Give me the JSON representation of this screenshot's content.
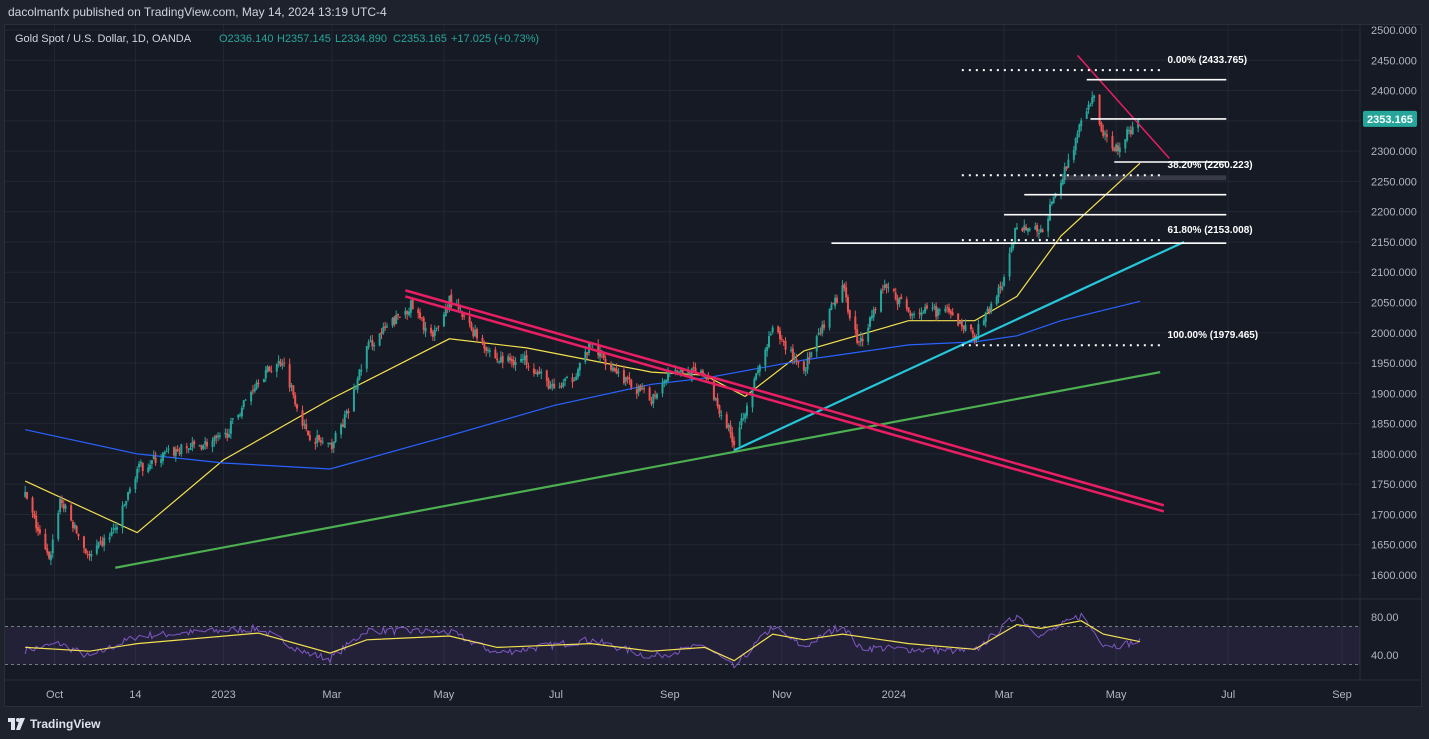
{
  "header": {
    "published": "dacolmanfx published on TradingView.com, May 14, 2024 13:19 UTC-4"
  },
  "legend": {
    "symbol": "Gold Spot / U.S. Dollar, 1D, OANDA",
    "open": "O2336.140",
    "high": "H2357.145",
    "low": "L2334.890",
    "close": "C2353.165",
    "change": "+17.025 (+0.73%)"
  },
  "price_tag": "2353.165",
  "footer": {
    "brand": "TradingView"
  },
  "colors": {
    "background": "#161a25",
    "up_candle": "#26a69a",
    "down_candle": "#ef5350",
    "sma_50": "#f5e050",
    "sma_200": "#2962ff",
    "downtrend_channel": "#e91e63",
    "long_support": "#4caf50",
    "short_support": "#26c6da",
    "rsi_line": "#7e57c2",
    "rsi_signal": "#f5e050",
    "price_tag": "#26a69a"
  },
  "icons": {
    "logo": "tradingview-logo-icon"
  },
  "chart_data": {
    "type": "candlestick",
    "title": "Gold Spot / U.S. Dollar, 1D, OANDA",
    "x_tick_labels": [
      "Oct",
      "14",
      "2023",
      "Mar",
      "May",
      "Jul",
      "Sep",
      "Nov",
      "2024",
      "Mar",
      "May",
      "Jul",
      "Sep"
    ],
    "y_tick_labels": [
      "1600.000",
      "1650.000",
      "1700.000",
      "1750.000",
      "1800.000",
      "1850.000",
      "1900.000",
      "1950.000",
      "2000.000",
      "2050.000",
      "2100.000",
      "2150.000",
      "2200.000",
      "2250.000",
      "2300.000",
      "2350.000",
      "2400.000",
      "2450.000",
      "2500.000"
    ],
    "ylim": [
      1600,
      2500
    ],
    "close_path": [
      [
        "2022-09-15",
        1732
      ],
      [
        "2022-09-28",
        1622
      ],
      [
        "2022-10-04",
        1725
      ],
      [
        "2022-10-20",
        1628
      ],
      [
        "2022-11-04",
        1680
      ],
      [
        "2022-11-15",
        1775
      ],
      [
        "2022-12-01",
        1800
      ],
      [
        "2022-12-13",
        1810
      ],
      [
        "2023-01-01",
        1825
      ],
      [
        "2023-01-20",
        1925
      ],
      [
        "2023-02-02",
        1955
      ],
      [
        "2023-02-15",
        1835
      ],
      [
        "2023-02-28",
        1810
      ],
      [
        "2023-03-10",
        1870
      ],
      [
        "2023-03-20",
        1975
      ],
      [
        "2023-04-04",
        2020
      ],
      [
        "2023-04-13",
        2045
      ],
      [
        "2023-04-25",
        1990
      ],
      [
        "2023-05-04",
        2055
      ],
      [
        "2023-05-15",
        2010
      ],
      [
        "2023-05-30",
        1955
      ],
      [
        "2023-06-15",
        1955
      ],
      [
        "2023-06-30",
        1905
      ],
      [
        "2023-07-10",
        1925
      ],
      [
        "2023-07-20",
        1980
      ],
      [
        "2023-08-10",
        1915
      ],
      [
        "2023-08-22",
        1890
      ],
      [
        "2023-09-01",
        1940
      ],
      [
        "2023-09-20",
        1930
      ],
      [
        "2023-10-06",
        1820
      ],
      [
        "2023-10-12",
        1875
      ],
      [
        "2023-10-27",
        2005
      ],
      [
        "2023-11-13",
        1940
      ],
      [
        "2023-11-29",
        2045
      ],
      [
        "2023-12-04",
        2075
      ],
      [
        "2023-12-13",
        1980
      ],
      [
        "2023-12-27",
        2080
      ],
      [
        "2024-01-09",
        2035
      ],
      [
        "2024-01-29",
        2035
      ],
      [
        "2024-02-14",
        1995
      ],
      [
        "2024-03-01",
        2085
      ],
      [
        "2024-03-08",
        2180
      ],
      [
        "2024-03-21",
        2165
      ],
      [
        "2024-04-01",
        2250
      ],
      [
        "2024-04-12",
        2345
      ],
      [
        "2024-04-19",
        2390
      ],
      [
        "2024-04-24",
        2325
      ],
      [
        "2024-05-01",
        2305
      ],
      [
        "2024-05-14",
        2353.165
      ]
    ],
    "series": [
      {
        "type": "moving-average",
        "points": [
          [
            "2022-09-15",
            1755
          ],
          [
            "2022-11-15",
            1670
          ],
          [
            "2023-01-01",
            1790
          ],
          [
            "2023-02-28",
            1890
          ],
          [
            "2023-05-04",
            1990
          ],
          [
            "2023-06-15",
            1975
          ],
          [
            "2023-08-22",
            1935
          ],
          [
            "2023-09-20",
            1930
          ],
          [
            "2023-10-12",
            1895
          ],
          [
            "2023-11-13",
            1970
          ],
          [
            "2024-01-09",
            2020
          ],
          [
            "2024-02-14",
            2020
          ],
          [
            "2024-03-08",
            2060
          ],
          [
            "2024-04-01",
            2160
          ],
          [
            "2024-05-14",
            2280
          ]
        ]
      },
      {
        "type": "moving-average",
        "points": [
          [
            "2022-09-15",
            1840
          ],
          [
            "2022-11-15",
            1800
          ],
          [
            "2023-01-01",
            1785
          ],
          [
            "2023-02-28",
            1775
          ],
          [
            "2023-05-04",
            1830
          ],
          [
            "2023-06-30",
            1880
          ],
          [
            "2023-08-22",
            1915
          ],
          [
            "2023-09-20",
            1925
          ],
          [
            "2023-11-13",
            1955
          ],
          [
            "2024-01-09",
            1980
          ],
          [
            "2024-02-14",
            1985
          ],
          [
            "2024-03-08",
            1995
          ],
          [
            "2024-04-01",
            2020
          ],
          [
            "2024-05-14",
            2052
          ]
        ]
      }
    ],
    "rsi": {
      "y_tick_labels": [
        "80.00",
        "40.00"
      ],
      "ylim": [
        30,
        90
      ],
      "upper_band": 70,
      "lower_band": 30,
      "line": [
        [
          "2022-09-15",
          45
        ],
        [
          "2022-10-04",
          52
        ],
        [
          "2022-10-20",
          38
        ],
        [
          "2022-11-15",
          60
        ],
        [
          "2023-01-20",
          68
        ],
        [
          "2023-02-15",
          42
        ],
        [
          "2023-02-28",
          36
        ],
        [
          "2023-03-20",
          66
        ],
        [
          "2023-05-04",
          64
        ],
        [
          "2023-05-30",
          42
        ],
        [
          "2023-07-20",
          56
        ],
        [
          "2023-08-22",
          38
        ],
        [
          "2023-09-20",
          50
        ],
        [
          "2023-10-06",
          27
        ],
        [
          "2023-10-27",
          70
        ],
        [
          "2023-11-13",
          48
        ],
        [
          "2023-12-04",
          72
        ],
        [
          "2023-12-13",
          48
        ],
        [
          "2024-01-09",
          46
        ],
        [
          "2024-02-14",
          44
        ],
        [
          "2024-03-08",
          82
        ],
        [
          "2024-03-21",
          60
        ],
        [
          "2024-04-12",
          82
        ],
        [
          "2024-04-24",
          52
        ],
        [
          "2024-05-01",
          50
        ],
        [
          "2024-05-14",
          54
        ]
      ],
      "signal": [
        [
          "2022-09-15",
          48
        ],
        [
          "2022-10-20",
          44
        ],
        [
          "2022-11-15",
          52
        ],
        [
          "2023-01-20",
          63
        ],
        [
          "2023-02-28",
          42
        ],
        [
          "2023-03-20",
          56
        ],
        [
          "2023-05-04",
          60
        ],
        [
          "2023-05-30",
          48
        ],
        [
          "2023-07-20",
          52
        ],
        [
          "2023-08-22",
          44
        ],
        [
          "2023-09-20",
          48
        ],
        [
          "2023-10-06",
          34
        ],
        [
          "2023-10-27",
          62
        ],
        [
          "2023-11-13",
          56
        ],
        [
          "2023-12-04",
          62
        ],
        [
          "2024-01-09",
          52
        ],
        [
          "2024-02-14",
          46
        ],
        [
          "2024-03-08",
          72
        ],
        [
          "2024-03-21",
          68
        ],
        [
          "2024-04-12",
          76
        ],
        [
          "2024-04-24",
          62
        ],
        [
          "2024-05-14",
          54
        ]
      ]
    },
    "annotations": {
      "fib_levels": [
        {
          "label": "0.00% (2433.765)",
          "value": 2433.765
        },
        {
          "label": "38.20% (2260.223)",
          "value": 2260.223
        },
        {
          "label": "61.80% (2153.008)",
          "value": 2153.008
        },
        {
          "label": "100.00% (1979.465)",
          "value": 1979.465
        }
      ],
      "horizontal_lines": [
        {
          "value": 2148,
          "from": "2023-11-28",
          "to": "2024-06-30"
        },
        {
          "value": 2195,
          "from": "2024-03-01",
          "to": "2024-06-30"
        },
        {
          "value": 2228,
          "from": "2024-03-12",
          "to": "2024-06-30"
        },
        {
          "value": 2282,
          "from": "2024-04-30",
          "to": "2024-06-30"
        },
        {
          "value": 2418,
          "from": "2024-04-15",
          "to": "2024-06-30"
        },
        {
          "value": 2353.165,
          "from": "2024-04-17",
          "to": "2024-06-30"
        }
      ],
      "support_zone": [
        2252,
        2260
      ],
      "trendlines": [
        {
          "name": "long-support-trendline",
          "from": [
            "2022-11-03",
            1612
          ],
          "to": [
            "2024-05-25",
            1935
          ]
        },
        {
          "name": "short-support-trendline",
          "from": [
            "2023-10-06",
            1806
          ],
          "to": [
            "2024-06-07",
            2150
          ]
        },
        {
          "name": "downtrend-channel-upper",
          "from": [
            "2023-04-10",
            2070
          ],
          "to": [
            "2024-05-27",
            1715
          ]
        },
        {
          "name": "downtrend-channel-lower",
          "from": [
            "2023-04-10",
            2060
          ],
          "to": [
            "2024-05-27",
            1705
          ]
        },
        {
          "name": "recent-resistance-trendline",
          "from": [
            "2024-04-10",
            2458
          ],
          "to": [
            "2024-05-30",
            2288
          ]
        }
      ]
    }
  }
}
